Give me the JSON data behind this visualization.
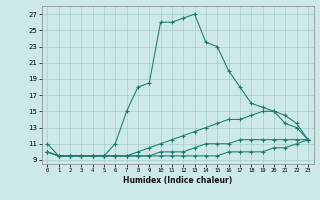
{
  "title": "",
  "xlabel": "Humidex (Indice chaleur)",
  "ylabel": "",
  "bg_color": "#cce8e8",
  "grid_color": "#aacccc",
  "line_color": "#1a7a6e",
  "xlim": [
    -0.5,
    23.5
  ],
  "ylim": [
    8.5,
    28.0
  ],
  "xticks": [
    0,
    1,
    2,
    3,
    4,
    5,
    6,
    7,
    8,
    9,
    10,
    11,
    12,
    13,
    14,
    15,
    16,
    17,
    18,
    19,
    20,
    21,
    22,
    23
  ],
  "yticks": [
    9,
    11,
    13,
    15,
    17,
    19,
    21,
    23,
    25,
    27
  ],
  "line1_x": [
    0,
    1,
    2,
    3,
    4,
    5,
    6,
    7,
    8,
    9,
    10,
    11,
    12,
    13,
    14,
    15,
    16,
    17,
    18,
    19,
    20,
    21,
    22,
    23
  ],
  "line1_y": [
    11,
    9.5,
    9.5,
    9.5,
    9.5,
    9.5,
    11,
    15,
    18,
    18.5,
    26,
    26,
    26.5,
    27,
    23.5,
    23,
    20,
    18,
    16,
    15.5,
    15,
    13.5,
    13,
    11.5
  ],
  "line2_x": [
    0,
    1,
    2,
    3,
    4,
    5,
    6,
    7,
    8,
    9,
    10,
    11,
    12,
    13,
    14,
    15,
    16,
    17,
    18,
    19,
    20,
    21,
    22,
    23
  ],
  "line2_y": [
    10,
    9.5,
    9.5,
    9.5,
    9.5,
    9.5,
    9.5,
    9.5,
    10,
    10.5,
    11,
    11.5,
    12,
    12.5,
    13,
    13.5,
    14,
    14,
    14.5,
    15,
    15,
    14.5,
    13.5,
    11.5
  ],
  "line3_x": [
    0,
    1,
    2,
    3,
    4,
    5,
    6,
    7,
    8,
    9,
    10,
    11,
    12,
    13,
    14,
    15,
    16,
    17,
    18,
    19,
    20,
    21,
    22,
    23
  ],
  "line3_y": [
    10,
    9.5,
    9.5,
    9.5,
    9.5,
    9.5,
    9.5,
    9.5,
    9.5,
    9.5,
    10,
    10,
    10,
    10.5,
    11,
    11,
    11,
    11.5,
    11.5,
    11.5,
    11.5,
    11.5,
    11.5,
    11.5
  ],
  "line4_x": [
    0,
    1,
    2,
    3,
    4,
    5,
    6,
    7,
    8,
    9,
    10,
    11,
    12,
    13,
    14,
    15,
    16,
    17,
    18,
    19,
    20,
    21,
    22,
    23
  ],
  "line4_y": [
    10,
    9.5,
    9.5,
    9.5,
    9.5,
    9.5,
    9.5,
    9.5,
    9.5,
    9.5,
    9.5,
    9.5,
    9.5,
    9.5,
    9.5,
    9.5,
    10,
    10,
    10,
    10,
    10.5,
    10.5,
    11,
    11.5
  ]
}
